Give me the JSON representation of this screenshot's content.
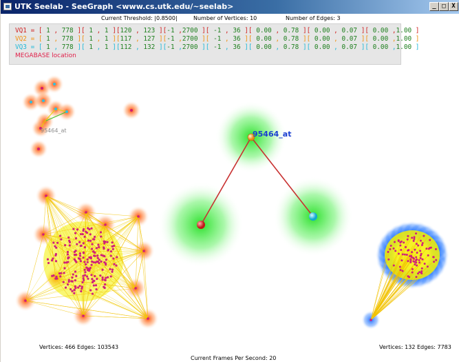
{
  "window": {
    "title": "UTK Seelab - SeeGraph <www.cs.utk.edu/~seelab>",
    "controls": [
      "_",
      "□",
      "X"
    ]
  },
  "info": {
    "threshold": "Current Threshold: |0.8500|",
    "vertices": "Number of Vertices: 10",
    "edges": "Number of Edges: 3"
  },
  "queries": [
    {
      "label": "VQ1 = ",
      "color": "#d02020",
      "values": [
        "[ 1 , 778 ]",
        "[ 1 , 1 ]",
        "[120 , 123 ]",
        "[-1 ,2700 ]",
        "[ -1 , 36 ]",
        "[ 0.00 , 0.78 ]",
        "[ 0.00 , 0.07 ]",
        "[ 0.00 ,1.00 ]"
      ]
    },
    {
      "label": "VQ2 = ",
      "color": "#f09010",
      "values": [
        "[ 1 , 778 ]",
        "[ 1 , 1 ]",
        "[117 , 127 ]",
        "[-1 ,2700 ]",
        "[ -1 , 36 ]",
        "[ 0.00 , 0.78 ]",
        "[ 0.00 , 0.07 ]",
        "[ 0.00 ,1.00 ]"
      ]
    },
    {
      "label": "VQ3 = ",
      "color": "#20b8d8",
      "values": [
        "[ 1 , 778 ]",
        "[ 1 , 1 ]",
        "[112 , 132 ]",
        "[-1 ,2700 ]",
        "[ -1 , 36 ]",
        "[ 0.00 , 0.78 ]",
        "[ 0.00 , 0.07 ]",
        "[ 0.00 ,1.00 ]"
      ]
    }
  ],
  "value_color": "#208020",
  "megabase_label": "MEGABASE location",
  "graph": {
    "center_label": "95464_at",
    "small_label": "95464_at",
    "colors": {
      "glow_green": "#22dd22",
      "glow_orange": "#ff5a10",
      "glow_blue": "#2277ff",
      "edge_red": "#cc3030",
      "edge_yellow": "#ffd400",
      "node_pink": "#d0207a"
    }
  },
  "stats": {
    "left": "Vertices: 466   Edges: 103543",
    "right": "Vertices: 132   Edges: 7783",
    "fps": "Current Frames Per Second: 20"
  }
}
